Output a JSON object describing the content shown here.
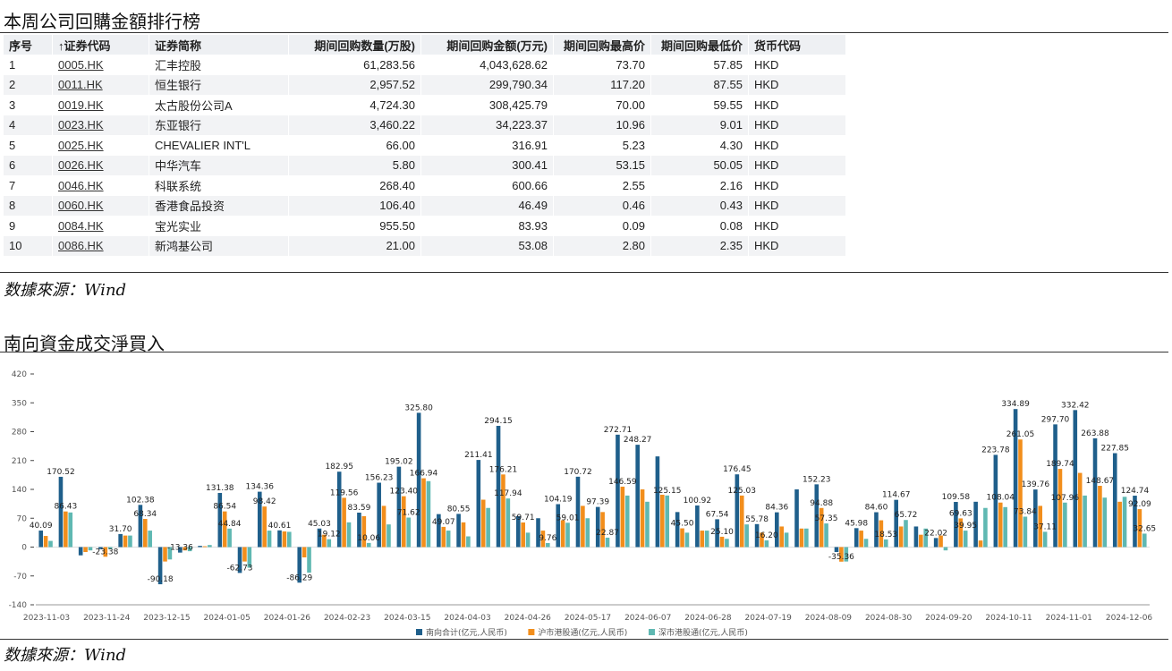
{
  "table_section": {
    "title": "本周公司回購金額排行榜",
    "headers": [
      "序号",
      "↑证券代码",
      "证券简称",
      "期间回购数量(万股)",
      "期间回购金额(万元)",
      "期间回购最高价",
      "期间回购最低价",
      "货币代码"
    ],
    "rows": [
      [
        "1",
        "0005.HK",
        "汇丰控股",
        "61,283.56",
        "4,043,628.62",
        "73.70",
        "57.85",
        "HKD"
      ],
      [
        "2",
        "0011.HK",
        "恒生银行",
        "2,957.52",
        "299,790.34",
        "117.20",
        "87.55",
        "HKD"
      ],
      [
        "3",
        "0019.HK",
        "太古股份公司A",
        "4,724.30",
        "308,425.79",
        "70.00",
        "59.55",
        "HKD"
      ],
      [
        "4",
        "0023.HK",
        "东亚银行",
        "3,460.22",
        "34,223.37",
        "10.96",
        "9.01",
        "HKD"
      ],
      [
        "5",
        "0025.HK",
        "CHEVALIER INT'L",
        "66.00",
        "316.91",
        "5.23",
        "4.30",
        "HKD"
      ],
      [
        "6",
        "0026.HK",
        "中华汽车",
        "5.80",
        "300.41",
        "53.15",
        "50.05",
        "HKD"
      ],
      [
        "7",
        "0046.HK",
        "科联系统",
        "268.40",
        "600.66",
        "2.55",
        "2.16",
        "HKD"
      ],
      [
        "8",
        "0060.HK",
        "香港食品投资",
        "106.40",
        "46.49",
        "0.46",
        "0.43",
        "HKD"
      ],
      [
        "9",
        "0084.HK",
        "宝光实业",
        "955.50",
        "83.93",
        "0.09",
        "0.08",
        "HKD"
      ],
      [
        "10",
        "0086.HK",
        "新鸿基公司",
        "21.00",
        "53.08",
        "2.80",
        "2.35",
        "HKD"
      ]
    ],
    "source": "数據來源：Wind"
  },
  "chart_section": {
    "title": "南向資金成交淨買入",
    "source": "数據來源：Wind"
  },
  "chart_data": {
    "type": "bar",
    "ylim": [
      -140,
      420
    ],
    "yticks": [
      -140,
      -70,
      0,
      70,
      140,
      210,
      280,
      350,
      420
    ],
    "x_tick_labels": [
      "2023-11-03",
      "2023-11-24",
      "2023-12-15",
      "2024-01-05",
      "2024-01-26",
      "2024-02-23",
      "2024-03-15",
      "2024-04-03",
      "2024-04-26",
      "2024-05-17",
      "2024-06-07",
      "2024-06-28",
      "2024-07-19",
      "2024-08-09",
      "2024-08-30",
      "2024-09-20",
      "2024-10-11",
      "2024-11-01",
      "2024-12-06"
    ],
    "legend_position": "bottom",
    "series": [
      {
        "name": "南向合计(亿元,人民币)",
        "color": "#1f5f8b",
        "values": [
          40.09,
          170.52,
          -20,
          -5,
          31.7,
          102.38,
          -90.18,
          -13.36,
          3,
          131.38,
          -62.73,
          134.36,
          40.61,
          -86.29,
          45.03,
          182.95,
          83.59,
          156.23,
          195.02,
          325.8,
          80,
          80.55,
          211.41,
          294.15,
          75,
          70,
          104.19,
          170.72,
          97.39,
          272.71,
          248.27,
          220,
          85,
          100.92,
          67.54,
          176.45,
          55.78,
          84.36,
          140,
          152.23,
          -12,
          45.98,
          84.6,
          114.67,
          50,
          22.02,
          109.58,
          110,
          223.78,
          334.89,
          139.76,
          297.7,
          332.42,
          263.88,
          227.85,
          124.74
        ]
      },
      {
        "name": "沪市港股通(亿元,人民币)",
        "color": "#f28e1c",
        "values": [
          27,
          86.43,
          -12,
          -23.38,
          28,
          68.34,
          -35,
          -8,
          2,
          86.54,
          -35,
          98.42,
          38,
          -25,
          30,
          119.56,
          75,
          100,
          123.4,
          166.94,
          49.07,
          60,
          115,
          176.21,
          59.71,
          40,
          65,
          100,
          85,
          146.59,
          140,
          127,
          45.5,
          40,
          25.1,
          125.03,
          35,
          50,
          45,
          94.88,
          -35.36,
          40,
          65,
          50,
          30,
          28,
          69.63,
          16,
          108.04,
          261.05,
          100,
          189.74,
          180,
          148.67,
          110,
          92.09
        ]
      },
      {
        "name": "深市港股通(亿元,人民币)",
        "color": "#5fb8b2",
        "values": [
          15,
          84,
          -8,
          -5,
          28,
          40,
          -30,
          -10,
          5,
          44.84,
          -50,
          40,
          37,
          -62,
          19.12,
          60,
          10.06,
          55,
          71.62,
          160,
          40,
          26,
          95,
          117.94,
          35,
          9.76,
          59.01,
          70,
          22.87,
          125,
          110,
          125.15,
          35,
          40,
          20,
          55,
          16.2,
          35,
          45,
          57.35,
          -35,
          20,
          18.53,
          65.72,
          45,
          -8,
          39.95,
          95,
          97,
          73.84,
          37.11,
          107.96,
          125,
          120,
          122,
          32.65
        ]
      }
    ],
    "data_labels": [
      {
        "series": 0,
        "index": 0,
        "text": "40.09"
      },
      {
        "series": 0,
        "index": 1,
        "text": "170.52"
      },
      {
        "series": 1,
        "index": 1,
        "text": "86.43"
      },
      {
        "series": 1,
        "index": 3,
        "text": "-23.38"
      },
      {
        "series": 0,
        "index": 4,
        "text": "31.70"
      },
      {
        "series": 0,
        "index": 5,
        "text": "102.38"
      },
      {
        "series": 1,
        "index": 5,
        "text": "68.34"
      },
      {
        "series": 0,
        "index": 6,
        "text": "-90.18"
      },
      {
        "series": 0,
        "index": 7,
        "text": "-13.36"
      },
      {
        "series": 0,
        "index": 9,
        "text": "131.38"
      },
      {
        "series": 1,
        "index": 9,
        "text": "86.54"
      },
      {
        "series": 2,
        "index": 9,
        "text": "44.84"
      },
      {
        "series": 0,
        "index": 10,
        "text": "-62.73"
      },
      {
        "series": 0,
        "index": 11,
        "text": "134.36"
      },
      {
        "series": 1,
        "index": 11,
        "text": "98.42"
      },
      {
        "series": 0,
        "index": 12,
        "text": "40.61"
      },
      {
        "series": 0,
        "index": 13,
        "text": "-86.29"
      },
      {
        "series": 0,
        "index": 14,
        "text": "45.03"
      },
      {
        "series": 2,
        "index": 14,
        "text": "19.12"
      },
      {
        "series": 0,
        "index": 15,
        "text": "182.95"
      },
      {
        "series": 1,
        "index": 15,
        "text": "119.56"
      },
      {
        "series": 0,
        "index": 16,
        "text": "83.59"
      },
      {
        "series": 2,
        "index": 16,
        "text": "10.06"
      },
      {
        "series": 0,
        "index": 17,
        "text": "156.23"
      },
      {
        "series": 0,
        "index": 18,
        "text": "195.02"
      },
      {
        "series": 1,
        "index": 18,
        "text": "123.40"
      },
      {
        "series": 2,
        "index": 18,
        "text": "71.62"
      },
      {
        "series": 0,
        "index": 19,
        "text": "325.80"
      },
      {
        "series": 1,
        "index": 19,
        "text": "166.94"
      },
      {
        "series": 1,
        "index": 20,
        "text": "49.07"
      },
      {
        "series": 0,
        "index": 21,
        "text": "80.55"
      },
      {
        "series": 0,
        "index": 22,
        "text": "211.41"
      },
      {
        "series": 0,
        "index": 23,
        "text": "294.15"
      },
      {
        "series": 1,
        "index": 23,
        "text": "176.21"
      },
      {
        "series": 2,
        "index": 23,
        "text": "117.94"
      },
      {
        "series": 1,
        "index": 24,
        "text": "59.71"
      },
      {
        "series": 2,
        "index": 25,
        "text": "9.76"
      },
      {
        "series": 0,
        "index": 26,
        "text": "104.19"
      },
      {
        "series": 2,
        "index": 26,
        "text": "59.01"
      },
      {
        "series": 0,
        "index": 27,
        "text": "170.72"
      },
      {
        "series": 0,
        "index": 28,
        "text": "97.39"
      },
      {
        "series": 2,
        "index": 28,
        "text": "22.87"
      },
      {
        "series": 0,
        "index": 29,
        "text": "272.71"
      },
      {
        "series": 1,
        "index": 29,
        "text": "146.59"
      },
      {
        "series": 0,
        "index": 30,
        "text": "248.27"
      },
      {
        "series": 2,
        "index": 31,
        "text": "125.15"
      },
      {
        "series": 1,
        "index": 32,
        "text": "45.50"
      },
      {
        "series": 0,
        "index": 33,
        "text": "100.92"
      },
      {
        "series": 0,
        "index": 34,
        "text": "67.54"
      },
      {
        "series": 1,
        "index": 34,
        "text": "25.10"
      },
      {
        "series": 0,
        "index": 35,
        "text": "176.45"
      },
      {
        "series": 1,
        "index": 35,
        "text": "125.03"
      },
      {
        "series": 0,
        "index": 36,
        "text": "55.78"
      },
      {
        "series": 2,
        "index": 36,
        "text": "16.20"
      },
      {
        "series": 0,
        "index": 37,
        "text": "84.36"
      },
      {
        "series": 0,
        "index": 39,
        "text": "152.23"
      },
      {
        "series": 1,
        "index": 39,
        "text": "94.88"
      },
      {
        "series": 2,
        "index": 39,
        "text": "57.35"
      },
      {
        "series": 1,
        "index": 40,
        "text": "-35.36"
      },
      {
        "series": 0,
        "index": 41,
        "text": "45.98"
      },
      {
        "series": 0,
        "index": 42,
        "text": "84.60"
      },
      {
        "series": 2,
        "index": 42,
        "text": "18.53"
      },
      {
        "series": 0,
        "index": 43,
        "text": "114.67"
      },
      {
        "series": 2,
        "index": 43,
        "text": "65.72"
      },
      {
        "series": 0,
        "index": 45,
        "text": "22.02"
      },
      {
        "series": 0,
        "index": 46,
        "text": "109.58"
      },
      {
        "series": 1,
        "index": 46,
        "text": "69.63"
      },
      {
        "series": 2,
        "index": 46,
        "text": "39.95"
      },
      {
        "series": 0,
        "index": 48,
        "text": "223.78"
      },
      {
        "series": 1,
        "index": 48,
        "text": "108.04"
      },
      {
        "series": 0,
        "index": 49,
        "text": "334.89"
      },
      {
        "series": 1,
        "index": 49,
        "text": "261.05"
      },
      {
        "series": 2,
        "index": 49,
        "text": "73.84"
      },
      {
        "series": 0,
        "index": 50,
        "text": "139.76"
      },
      {
        "series": 2,
        "index": 50,
        "text": "37.11"
      },
      {
        "series": 0,
        "index": 51,
        "text": "297.70"
      },
      {
        "series": 1,
        "index": 51,
        "text": "189.74"
      },
      {
        "series": 2,
        "index": 51,
        "text": "107.96"
      },
      {
        "series": 0,
        "index": 52,
        "text": "332.42"
      },
      {
        "series": 0,
        "index": 53,
        "text": "263.88"
      },
      {
        "series": 1,
        "index": 53,
        "text": "148.67"
      },
      {
        "series": 0,
        "index": 54,
        "text": "227.85"
      },
      {
        "series": 0,
        "index": 55,
        "text": "124.74"
      },
      {
        "series": 1,
        "index": 55,
        "text": "92.09"
      },
      {
        "series": 2,
        "index": 55,
        "text": "32.65"
      }
    ]
  }
}
